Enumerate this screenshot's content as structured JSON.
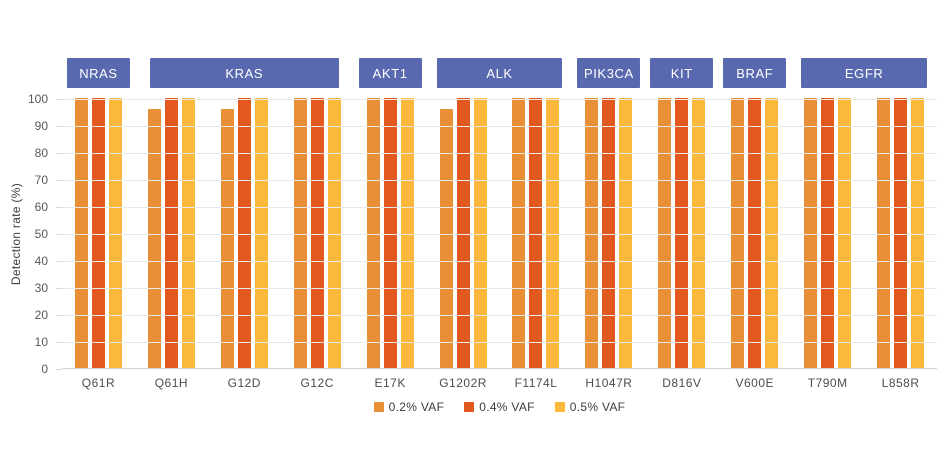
{
  "chart_data": {
    "type": "bar",
    "title": "",
    "ylabel": "Detection rate (%)",
    "ylim": [
      0,
      100
    ],
    "yticks": [
      0,
      10,
      20,
      30,
      40,
      50,
      60,
      70,
      80,
      90,
      100
    ],
    "grid": true,
    "legend_position": "bottom",
    "categories": [
      "Q61R",
      "Q61H",
      "G12D",
      "G12C",
      "E17K",
      "G1202R",
      "F1174L",
      "H1047R",
      "D816V",
      "V600E",
      "T790M",
      "L858R"
    ],
    "gene_groups": [
      {
        "label": "NRAS",
        "span": 1
      },
      {
        "label": "KRAS",
        "span": 3
      },
      {
        "label": "AKT1",
        "span": 1
      },
      {
        "label": "ALK",
        "span": 2
      },
      {
        "label": "PIK3CA",
        "span": 1
      },
      {
        "label": "KIT",
        "span": 1
      },
      {
        "label": "BRAF",
        "span": 1
      },
      {
        "label": "EGFR",
        "span": 2
      }
    ],
    "series": [
      {
        "name": "0.2% VAF",
        "color": "#E98F38",
        "values": [
          100,
          96,
          96,
          100,
          100,
          96,
          100,
          100,
          100,
          100,
          100,
          100
        ]
      },
      {
        "name": "0.4% VAF",
        "color": "#E3581E",
        "values": [
          100,
          100,
          100,
          100,
          100,
          100,
          100,
          100,
          100,
          100,
          100,
          100
        ]
      },
      {
        "name": "0.5% VAF",
        "color": "#FBB93B",
        "values": [
          100,
          100,
          100,
          100,
          100,
          100,
          100,
          100,
          100,
          100,
          100,
          100
        ]
      }
    ],
    "colors": {
      "gene_box": "#5969AF",
      "gridline": "#e9e9e9",
      "axis_line": "#d2d2d2"
    }
  }
}
